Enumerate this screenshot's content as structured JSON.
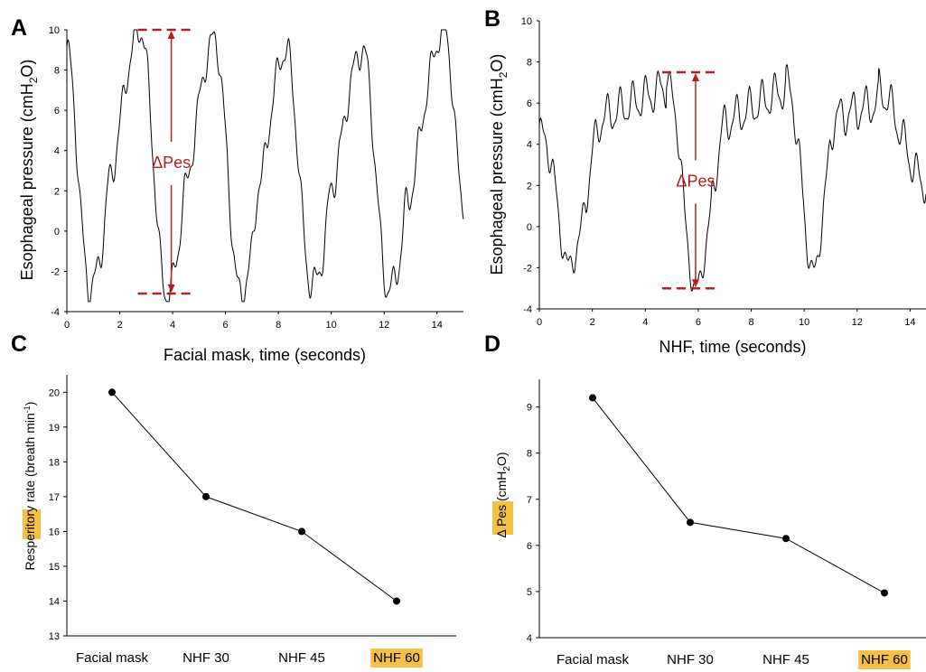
{
  "highlight_color": "#f6c046",
  "annotation_color": "#b81c1c",
  "chart_data": [
    {
      "panel": "A",
      "type": "line",
      "xlabel": "Facial mask, time (seconds)",
      "ylabel_main": "Esophageal pressure (cmH",
      "ylabel_sub": "2",
      "ylabel_end": "O)",
      "xlim": [
        0,
        15
      ],
      "ylim": [
        -4,
        10
      ],
      "xticks": [
        0,
        2,
        4,
        6,
        8,
        10,
        12,
        14
      ],
      "yticks": [
        -4,
        -2,
        0,
        2,
        4,
        6,
        8,
        10
      ],
      "grid": false,
      "annotation": {
        "label": "ΔPes",
        "x": 3.95,
        "y_top": 10,
        "y_bottom": -3.1
      },
      "cycles": [
        {
          "t_start": 0.0,
          "t_trough": 0.85,
          "t_peak": 2.8,
          "trough": -2.8,
          "peak": 10.0,
          "notch_t": 1.55,
          "notch_v": 0.6
        },
        {
          "t_start": 2.8,
          "t_trough": 3.75,
          "t_peak": 5.6,
          "trough": -3.1,
          "peak": 9.5,
          "notch_t": 4.4,
          "notch_v": -2.0
        },
        {
          "t_start": 5.6,
          "t_trough": 6.55,
          "t_peak": 8.3,
          "trough": -3.1,
          "peak": 9.0,
          "notch_t": 7.2,
          "notch_v": -0.9
        },
        {
          "t_start": 8.3,
          "t_trough": 9.25,
          "t_peak": 11.2,
          "trough": -2.7,
          "peak": 9.0,
          "notch_t": 9.95,
          "notch_v": 0.6
        },
        {
          "t_start": 11.2,
          "t_trough": 12.15,
          "t_peak": 14.3,
          "trough": -2.9,
          "peak": 10.0,
          "notch_t": 12.8,
          "notch_v": -0.8
        }
      ],
      "t_end": 15.0,
      "end_value": 1.4
    },
    {
      "panel": "B",
      "type": "line",
      "xlabel": "NHF, time (seconds)",
      "ylabel_main": "Esophageal pressure (cmH",
      "ylabel_sub": "2",
      "ylabel_end": "O)",
      "xlim": [
        0,
        14.6
      ],
      "ylim": [
        -4,
        10
      ],
      "xticks": [
        0,
        2,
        4,
        6,
        8,
        10,
        12,
        14
      ],
      "yticks": [
        -4,
        -2,
        0,
        2,
        4,
        6,
        8,
        10
      ],
      "grid": false,
      "annotation": {
        "label": "ΔPes",
        "x": 5.9,
        "y_top": 7.5,
        "y_bottom": -3.0
      },
      "cycles": [
        {
          "t_start": 0.0,
          "t_trough": 1.15,
          "t_peak": 4.8,
          "trough": -1.9,
          "peak": 7.4,
          "plateau": 5.3,
          "notch_t": 0.55,
          "notch_v": 1.3
        },
        {
          "t_start": 4.8,
          "t_trough": 5.9,
          "t_peak": 9.3,
          "trough": -3.0,
          "peak": 7.3,
          "plateau": 5.1,
          "notch_t": 5.35,
          "notch_v": 1.2
        },
        {
          "t_start": 9.3,
          "t_trough": 10.35,
          "t_peak": 12.8,
          "trough": -2.2,
          "peak": 6.6,
          "plateau": 5.3,
          "notch_t": 9.85,
          "notch_v": 1.8
        }
      ],
      "t_end": 14.6,
      "end_value": 2.1
    },
    {
      "panel": "C",
      "type": "line",
      "categories": [
        "Facial mask",
        "NHF 30",
        "NHF 45",
        "NHF 60"
      ],
      "values": [
        20,
        17,
        16,
        14
      ],
      "highlight_category": "NHF 60",
      "ylabel_pre": "Resperitory ",
      "ylabel_hl": "rate",
      "ylabel_post": " (breath min",
      "ylabel_sup": "-1",
      "ylabel_close": ")",
      "ylim": [
        13,
        20.5
      ],
      "yticks": [
        13,
        14,
        15,
        16,
        17,
        18,
        19,
        20
      ],
      "grid": false
    },
    {
      "panel": "D",
      "type": "line",
      "categories": [
        "Facial mask",
        "NHF 30",
        "NHF 45",
        "NHF 60"
      ],
      "values": [
        9.2,
        6.5,
        6.15,
        4.97
      ],
      "highlight_category": "NHF 60",
      "ylabel_pre": "Δ ",
      "ylabel_hl": "Pes",
      "ylabel_post": " (cmH",
      "ylabel_sub": "2",
      "ylabel_close": "O)",
      "ylim": [
        4,
        9.6
      ],
      "yticks": [
        4,
        5,
        6,
        7,
        8,
        9
      ],
      "grid": false
    }
  ]
}
